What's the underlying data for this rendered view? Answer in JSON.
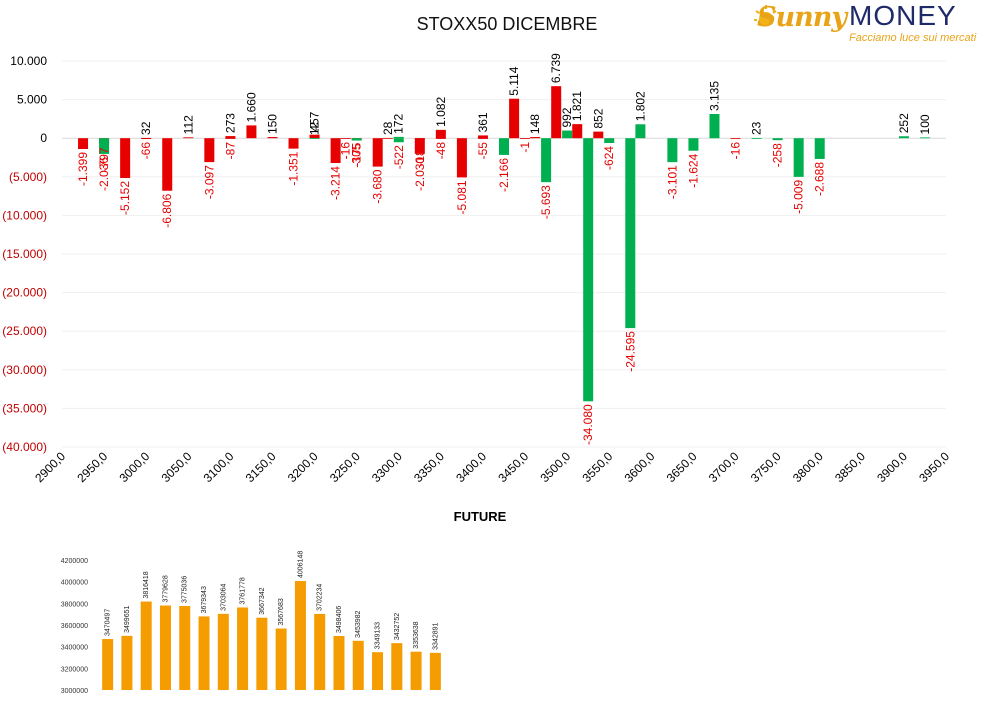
{
  "logo": {
    "brand_first": "Sunny",
    "brand_second": "MONEY",
    "tagline": "Facciamo luce sui mercati",
    "icon": "sun-icon"
  },
  "colors": {
    "positive_put": "#e60000",
    "negative_call": "#00b050",
    "label_negative": "#e60000",
    "label_positive": "#000000",
    "future_bars": "#f59c00"
  },
  "chart_data": [
    {
      "type": "bar",
      "title": "STOXX50 DICEMBRE",
      "xlabel": "",
      "ylabel": "",
      "ylim": [
        -40000,
        10000
      ],
      "y_ticks": [
        10000,
        5000,
        0,
        -5000,
        -10000,
        -15000,
        -20000,
        -25000,
        -30000,
        -35000,
        -40000
      ],
      "y_tick_labels": [
        "10.000",
        "5.000",
        "0",
        "(5.000)",
        "(10.000)",
        "(15.000)",
        "(20.000)",
        "(25.000)",
        "(30.000)",
        "(35.000)",
        "(40.000)"
      ],
      "x_range": [
        2900,
        3950
      ],
      "x_ticks": [
        "2900,0",
        "2950,0",
        "3000,0",
        "3050,0",
        "3100,0",
        "3150,0",
        "3200,0",
        "3250,0",
        "3300,0",
        "3350,0",
        "3400,0",
        "3450,0",
        "3500,0",
        "3550,0",
        "3600,0",
        "3650,0",
        "3700,0",
        "3750,0",
        "3800,0",
        "3850,0",
        "3900,0",
        "3950,0"
      ],
      "grid": true,
      "bars": [
        {
          "x": 2925,
          "color": "red",
          "value": -1399,
          "label": "-1.399"
        },
        {
          "x": 2950,
          "color": "red",
          "value": -797,
          "label": "-797"
        },
        {
          "x": 2950,
          "color": "green",
          "value": -2036,
          "label": "-2.036"
        },
        {
          "x": 2975,
          "color": "red",
          "value": -5152,
          "label": "-5.152"
        },
        {
          "x": 3000,
          "color": "red",
          "value": 32,
          "label": "32"
        },
        {
          "x": 3000,
          "color": "red",
          "value": -66,
          "label": "-66"
        },
        {
          "x": 3025,
          "color": "red",
          "value": -6806,
          "label": "-6.806"
        },
        {
          "x": 3050,
          "color": "red",
          "value": 112,
          "label": "112"
        },
        {
          "x": 3075,
          "color": "red",
          "value": -3097,
          "label": "-3.097"
        },
        {
          "x": 3100,
          "color": "red",
          "value": 273,
          "label": "273"
        },
        {
          "x": 3100,
          "color": "red",
          "value": -87,
          "label": "-87"
        },
        {
          "x": 3125,
          "color": "red",
          "value": 1660,
          "label": "1.660"
        },
        {
          "x": 3150,
          "color": "red",
          "value": 150,
          "label": "150"
        },
        {
          "x": 3175,
          "color": "red",
          "value": -1351,
          "label": "-1.351"
        },
        {
          "x": 3200,
          "color": "red",
          "value": 457,
          "label": "457"
        },
        {
          "x": 3200,
          "color": "green",
          "value": 12,
          "label": "12"
        },
        {
          "x": 3225,
          "color": "red",
          "value": -3214,
          "label": "-3.214"
        },
        {
          "x": 3237,
          "color": "red",
          "value": -16,
          "label": "-16"
        },
        {
          "x": 3250,
          "color": "red",
          "value": -175,
          "label": "-175"
        },
        {
          "x": 3250,
          "color": "green",
          "value": -305,
          "label": "-305"
        },
        {
          "x": 3275,
          "color": "red",
          "value": -3680,
          "label": "-3.680"
        },
        {
          "x": 3287,
          "color": "red",
          "value": 28,
          "label": "28"
        },
        {
          "x": 3300,
          "color": "green",
          "value": 172,
          "label": "172"
        },
        {
          "x": 3300,
          "color": "green",
          "value": -522,
          "label": "-522"
        },
        {
          "x": 3325,
          "color": "red",
          "value": -2030,
          "label": "-2.030"
        },
        {
          "x": 3325,
          "color": "red",
          "value": -185,
          "label": "-185"
        },
        {
          "x": 3350,
          "color": "red",
          "value": 1082,
          "label": "1.082"
        },
        {
          "x": 3350,
          "color": "red",
          "value": -48,
          "label": "-48"
        },
        {
          "x": 3375,
          "color": "red",
          "value": -5081,
          "label": "-5.081"
        },
        {
          "x": 3400,
          "color": "red",
          "value": -55,
          "label": "-55"
        },
        {
          "x": 3400,
          "color": "red",
          "value": 361,
          "label": "361"
        },
        {
          "x": 3425,
          "color": "green",
          "value": -2166,
          "label": "-2.166"
        },
        {
          "x": 3437,
          "color": "red",
          "value": 5114,
          "label": "5.114"
        },
        {
          "x": 3450,
          "color": "red",
          "value": -1,
          "label": "-1"
        },
        {
          "x": 3462,
          "color": "red",
          "value": 148,
          "label": "148"
        },
        {
          "x": 3475,
          "color": "green",
          "value": -5693,
          "label": "-5.693"
        },
        {
          "x": 3487,
          "color": "red",
          "value": 6739,
          "label": "6.739"
        },
        {
          "x": 3500,
          "color": "green",
          "value": 992,
          "label": "992"
        },
        {
          "x": 3512,
          "color": "red",
          "value": 1821,
          "label": "1.821"
        },
        {
          "x": 3525,
          "color": "green",
          "value": -34080,
          "label": "-34.080"
        },
        {
          "x": 3537,
          "color": "red",
          "value": 852,
          "label": "852"
        },
        {
          "x": 3550,
          "color": "green",
          "value": -624,
          "label": "-624"
        },
        {
          "x": 3575,
          "color": "green",
          "value": -24595,
          "label": "-24.595"
        },
        {
          "x": 3587,
          "color": "green",
          "value": 1802,
          "label": "1.802"
        },
        {
          "x": 3625,
          "color": "green",
          "value": -3101,
          "label": "-3.101"
        },
        {
          "x": 3650,
          "color": "green",
          "value": -1624,
          "label": "-1.624"
        },
        {
          "x": 3675,
          "color": "green",
          "value": 3135,
          "label": "3.135"
        },
        {
          "x": 3700,
          "color": "red",
          "value": -16,
          "label": "-16"
        },
        {
          "x": 3725,
          "color": "green",
          "value": 23,
          "label": "23"
        },
        {
          "x": 3750,
          "color": "green",
          "value": -258,
          "label": "-258"
        },
        {
          "x": 3775,
          "color": "green",
          "value": -5009,
          "label": "-5.009"
        },
        {
          "x": 3800,
          "color": "green",
          "value": -2688,
          "label": "-2.688"
        },
        {
          "x": 3900,
          "color": "green",
          "value": 252,
          "label": "252"
        },
        {
          "x": 3925,
          "color": "green",
          "value": 100,
          "label": "100"
        }
      ]
    },
    {
      "type": "bar",
      "title": "FUTURE",
      "xlabel": "",
      "ylabel": "",
      "ylim": [
        3000000,
        4200000
      ],
      "y_ticks": [
        4200000,
        4000000,
        3800000,
        3600000,
        3400000,
        3200000,
        3000000
      ],
      "y_tick_labels": [
        "4200000",
        "4000000",
        "3800000",
        "3600000",
        "3400000",
        "3200000",
        "3000000"
      ],
      "grid": false,
      "values": [
        3470497,
        3499651,
        3816418,
        3779628,
        3775036,
        3679343,
        3703064,
        3761778,
        3667342,
        3567683,
        4006148,
        3702234,
        3498406,
        3453982,
        3349133,
        3432752,
        3353638,
        3342891
      ]
    }
  ]
}
